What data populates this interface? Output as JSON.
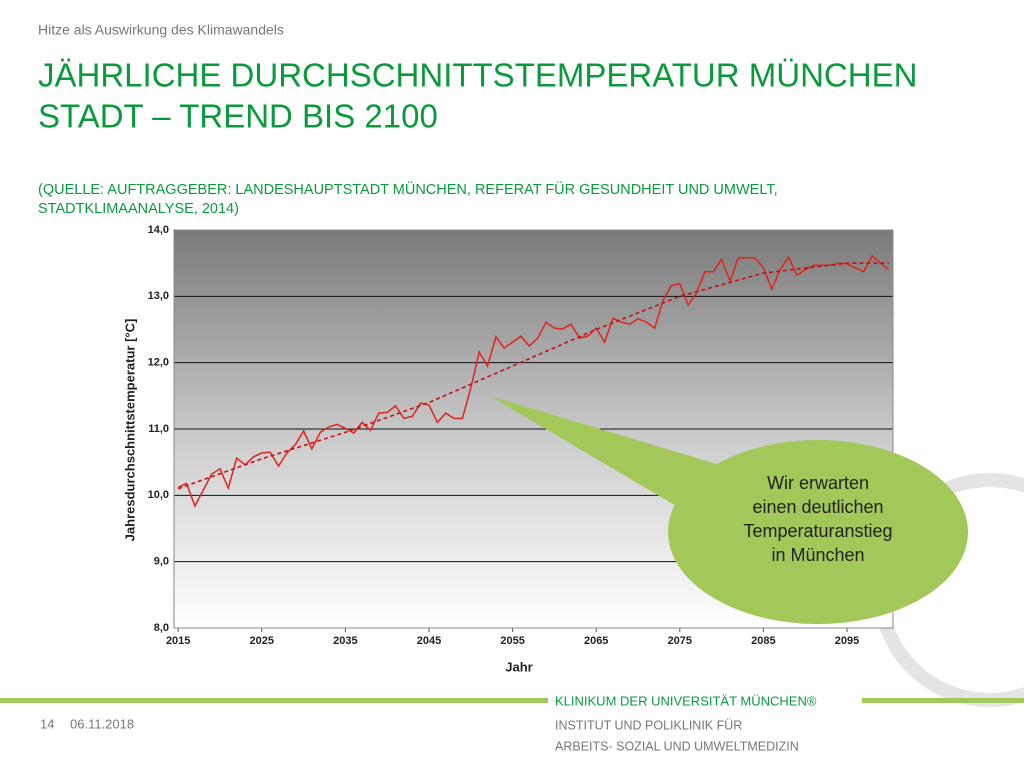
{
  "header": "Hitze als Auswirkung des Klimawandels",
  "title": [
    "JÄHRLICHE DURCHSCHNITTSTEMPERATUR MÜNCHEN",
    "STADT – TREND BIS 2100"
  ],
  "source": [
    "(QUELLE: AUFTRAGGEBER: LANDESHAUPTSTADT MÜNCHEN, REFERAT FÜR GESUNDHEIT UND UMWELT,",
    "STADTKLIMAANALYSE, 2014)"
  ],
  "chart_data": {
    "type": "line",
    "x_label": "Jahr",
    "y_label": "Jahresdurchschnittstemperatur [°C]",
    "x": [
      2015,
      2016,
      2017,
      2018,
      2019,
      2020,
      2021,
      2022,
      2023,
      2024,
      2025,
      2026,
      2027,
      2028,
      2029,
      2030,
      2031,
      2032,
      2033,
      2034,
      2035,
      2036,
      2037,
      2038,
      2039,
      2040,
      2041,
      2042,
      2043,
      2044,
      2045,
      2046,
      2047,
      2048,
      2049,
      2050,
      2051,
      2052,
      2053,
      2054,
      2055,
      2056,
      2057,
      2058,
      2059,
      2060,
      2061,
      2062,
      2063,
      2064,
      2065,
      2066,
      2067,
      2068,
      2069,
      2070,
      2071,
      2072,
      2073,
      2074,
      2075,
      2076,
      2077,
      2078,
      2079,
      2080,
      2081,
      2082,
      2083,
      2084,
      2085,
      2086,
      2087,
      2088,
      2089,
      2090,
      2091,
      2092,
      2093,
      2094,
      2095,
      2096,
      2097,
      2098,
      2099,
      2100
    ],
    "series": [
      {
        "color": "#e2231a",
        "values": [
          10.12,
          10.18,
          9.84,
          10.08,
          10.32,
          10.4,
          10.11,
          10.56,
          10.46,
          10.58,
          10.64,
          10.65,
          10.44,
          10.64,
          10.76,
          10.97,
          10.7,
          10.95,
          11.03,
          11.07,
          11.01,
          10.94,
          11.1,
          10.98,
          11.24,
          11.25,
          11.35,
          11.16,
          11.19,
          11.39,
          11.36,
          11.1,
          11.24,
          11.16,
          11.16,
          11.62,
          12.16,
          11.95,
          12.39,
          12.22,
          12.31,
          12.4,
          12.25,
          12.37,
          12.61,
          12.52,
          12.51,
          12.58,
          12.37,
          12.4,
          12.52,
          12.31,
          12.67,
          12.61,
          12.58,
          12.66,
          12.61,
          12.52,
          12.94,
          13.16,
          13.19,
          12.87,
          13.05,
          13.37,
          13.37,
          13.56,
          13.23,
          13.58,
          13.58,
          13.58,
          13.43,
          13.11,
          13.4,
          13.59,
          13.32,
          13.4,
          13.47,
          13.47,
          13.47,
          13.5,
          13.49,
          13.43,
          13.37,
          13.61,
          13.5,
          13.4
        ]
      },
      {
        "color": "#c0141a",
        "dashed": true,
        "x": [
          2015,
          2025,
          2035,
          2045,
          2055,
          2065,
          2075,
          2085,
          2095,
          2100
        ],
        "values": [
          10.1,
          10.55,
          10.95,
          11.4,
          11.95,
          12.5,
          13.0,
          13.35,
          13.5,
          13.5
        ]
      }
    ],
    "xlim": [
      2014.5,
      2100.5
    ],
    "xticks": [
      2015,
      2025,
      2035,
      2045,
      2055,
      2065,
      2075,
      2085,
      2095
    ],
    "ylim": [
      8,
      14
    ],
    "yticks": [
      {
        "value": 8,
        "label": "8,0"
      },
      {
        "value": 9,
        "label": "9,0"
      },
      {
        "value": 10,
        "label": "10,0"
      },
      {
        "value": 11,
        "label": "11,0"
      },
      {
        "value": 12,
        "label": "12,0"
      },
      {
        "value": 13,
        "label": "13,0"
      },
      {
        "value": 14,
        "label": "14,0"
      }
    ],
    "grid": true,
    "annotation": [
      "Wir erwarten",
      "einen deutlichen",
      "Temperaturanstieg",
      "in München"
    ]
  },
  "footer": {
    "page": "14",
    "date": "06.11.2018",
    "org": "KLINIKUM DER UNIVERSITÄT MÜNCHEN®",
    "institute": [
      "INSTITUT  UND POLIKLINIK FÜR",
      "ARBEITS- SOZIAL UND UMWELTMEDIZIN"
    ]
  }
}
